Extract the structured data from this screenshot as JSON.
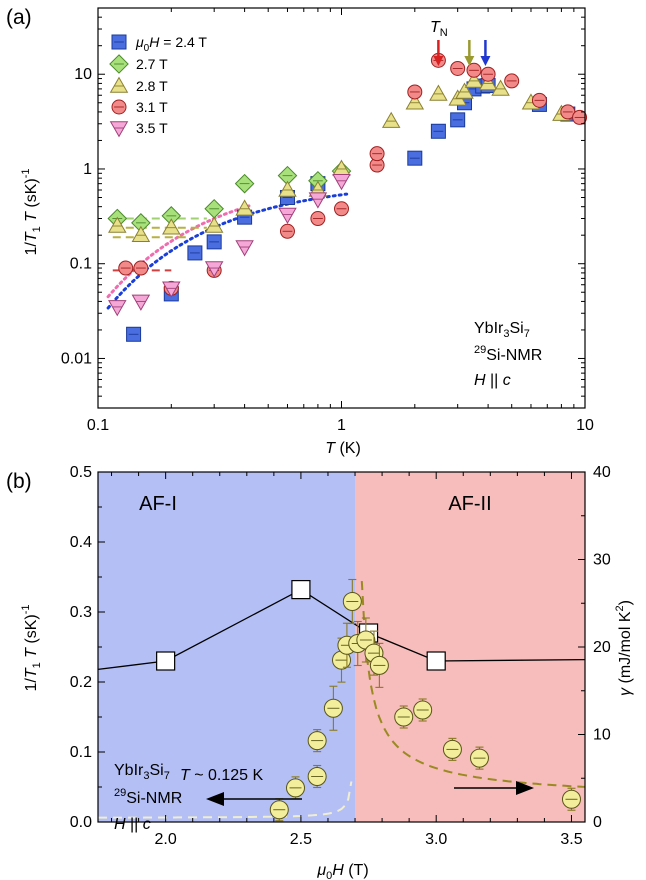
{
  "chart_data": [
    {
      "panel": "(a)",
      "type": "scatter",
      "xlabel": "T (K)",
      "ylabel": "1/T1T (sK)^-1",
      "x_scale": "log",
      "y_scale": "log",
      "xlim": [
        0.1,
        10
      ],
      "ylim": [
        0.003,
        50
      ],
      "x_ticks": [
        "0.1",
        "1",
        "10"
      ],
      "y_ticks": [
        "0.01",
        "0.1",
        "1",
        "10"
      ],
      "annotations": {
        "tn": "T",
        "tn_sub": "N",
        "sample": "YbIr",
        "sample_sub1": "3",
        "sample_mid": "Si",
        "sample_sub2": "7",
        "nmr_sup": "29",
        "nmr": "Si-NMR",
        "field_dir": "H || c"
      },
      "legend": {
        "prefix": "μ",
        "prefix_sub": "0",
        "prefix_rest": "H = 2.4 T"
      },
      "series": [
        {
          "name": "2.4 T",
          "marker": "square",
          "color": "#4a6ee0",
          "points": [
            [
              0.14,
              0.018
            ],
            [
              0.2,
              0.048
            ],
            [
              0.25,
              0.13
            ],
            [
              0.3,
              0.17
            ],
            [
              0.4,
              0.31
            ],
            [
              0.6,
              0.5
            ],
            [
              0.8,
              0.7
            ],
            [
              2.0,
              1.3
            ],
            [
              2.5,
              2.5
            ],
            [
              3.0,
              3.3
            ],
            [
              3.2,
              5.0
            ],
            [
              3.5,
              7.0
            ],
            [
              3.8,
              7.5
            ],
            [
              4.0,
              7.6
            ],
            [
              6.5,
              4.8
            ],
            [
              8.5,
              3.8
            ]
          ]
        },
        {
          "name": "2.7 T",
          "marker": "diamond",
          "color": "#a8e07c",
          "points": [
            [
              0.12,
              0.3
            ],
            [
              0.15,
              0.27
            ],
            [
              0.2,
              0.32
            ],
            [
              0.3,
              0.38
            ],
            [
              0.4,
              0.7
            ],
            [
              0.6,
              0.85
            ],
            [
              0.8,
              0.75
            ],
            [
              1.0,
              0.95
            ]
          ]
        },
        {
          "name": "2.8 T",
          "marker": "triangle-up",
          "color": "#e8e08a",
          "points": [
            [
              0.12,
              0.25
            ],
            [
              0.15,
              0.2
            ],
            [
              0.2,
              0.24
            ],
            [
              0.3,
              0.25
            ],
            [
              0.4,
              0.38
            ],
            [
              0.6,
              0.6
            ],
            [
              0.8,
              0.6
            ],
            [
              1.0,
              1.0
            ],
            [
              1.6,
              3.2
            ],
            [
              2.0,
              5.0
            ],
            [
              2.5,
              6.2
            ],
            [
              3.0,
              5.5
            ],
            [
              3.2,
              6.5
            ],
            [
              3.5,
              8.5
            ],
            [
              4.0,
              8.0
            ],
            [
              4.5,
              7.0
            ],
            [
              6.0,
              5.0
            ],
            [
              8.0,
              3.8
            ]
          ]
        },
        {
          "name": "3.1 T",
          "marker": "circle",
          "color": "#f28a8a",
          "points": [
            [
              0.13,
              0.09
            ],
            [
              0.15,
              0.09
            ],
            [
              0.2,
              0.055
            ],
            [
              0.3,
              0.085
            ],
            [
              0.6,
              0.22
            ],
            [
              0.8,
              0.3
            ],
            [
              1.0,
              0.38
            ],
            [
              1.4,
              1.1
            ],
            [
              1.4,
              1.45
            ],
            [
              2.0,
              6.5
            ],
            [
              2.5,
              14.0
            ],
            [
              3.0,
              11.5
            ],
            [
              3.5,
              11.0
            ],
            [
              4.0,
              10.0
            ],
            [
              5.0,
              8.5
            ],
            [
              6.5,
              5.3
            ],
            [
              8.5,
              4.0
            ],
            [
              9.5,
              3.5
            ]
          ]
        },
        {
          "name": "3.5 T",
          "marker": "triangle-down",
          "color": "#f5a8d8",
          "points": [
            [
              0.12,
              0.035
            ],
            [
              0.15,
              0.04
            ],
            [
              0.2,
              0.055
            ],
            [
              0.3,
              0.09
            ],
            [
              0.4,
              0.15
            ],
            [
              0.6,
              0.33
            ],
            [
              0.8,
              0.48
            ],
            [
              1.0,
              0.75
            ]
          ]
        }
      ],
      "fits": [
        {
          "series": "2.4 T",
          "style": "dotted",
          "color": "#1a3fd8"
        },
        {
          "series": "3.5 T",
          "style": "dotted",
          "color": "#f06cb0"
        }
      ],
      "arrows": [
        {
          "x": 2.5,
          "color": "#d92020"
        },
        {
          "x": 3.35,
          "color": "#9a9a30"
        },
        {
          "x": 3.9,
          "color": "#2038d0"
        }
      ]
    },
    {
      "panel": "(b)",
      "type": "scatter",
      "xlabel": "μ0H (T)",
      "ylabel_left": "1/T1T (sK)^-1",
      "ylabel_right": "γ (mJ/mol K^2)",
      "xlim": [
        1.75,
        3.55
      ],
      "ylim_left": [
        0,
        0.5
      ],
      "ylim_right": [
        0,
        40
      ],
      "x_ticks": [
        "2.0",
        "2.5",
        "3.0",
        "3.5"
      ],
      "y_ticks_left": [
        "0.0",
        "0.1",
        "0.2",
        "0.3",
        "0.4",
        "0.5"
      ],
      "y_ticks_right": [
        "0",
        "10",
        "20",
        "30",
        "40"
      ],
      "phase_boundary": 2.7,
      "regions": [
        {
          "label": "AF-I",
          "color": "#b3bff5"
        },
        {
          "label": "AF-II",
          "color": "#f7bcbc"
        }
      ],
      "annotation": {
        "t": "T",
        "rest": " ~ 0.125 K"
      },
      "sample_text": {
        "line1": "YbIr",
        "line1_sub1": "3",
        "line1_mid": "Si",
        "line1_sub2": "7",
        "line2_sup": "29",
        "line2": "Si-NMR",
        "line3": "H || c"
      },
      "series_nmr": {
        "marker": "square",
        "x": [
          2.0,
          2.5,
          2.75,
          3.0
        ],
        "y": [
          0.23,
          0.332,
          0.27,
          0.23
        ]
      },
      "series_gamma": {
        "marker": "circle",
        "color": "#f2ee9c",
        "x": [
          2.42,
          2.48,
          2.56,
          2.56,
          2.62,
          2.65,
          2.67,
          2.69,
          2.71,
          2.74,
          2.77,
          2.79,
          2.88,
          2.95,
          3.06,
          3.16,
          3.5
        ],
        "y": [
          1.4,
          3.9,
          5.2,
          9.3,
          13.0,
          18.5,
          20.2,
          25.2,
          20.4,
          20.8,
          19.3,
          17.9,
          12.0,
          12.8,
          8.3,
          7.3,
          2.6
        ]
      }
    }
  ]
}
